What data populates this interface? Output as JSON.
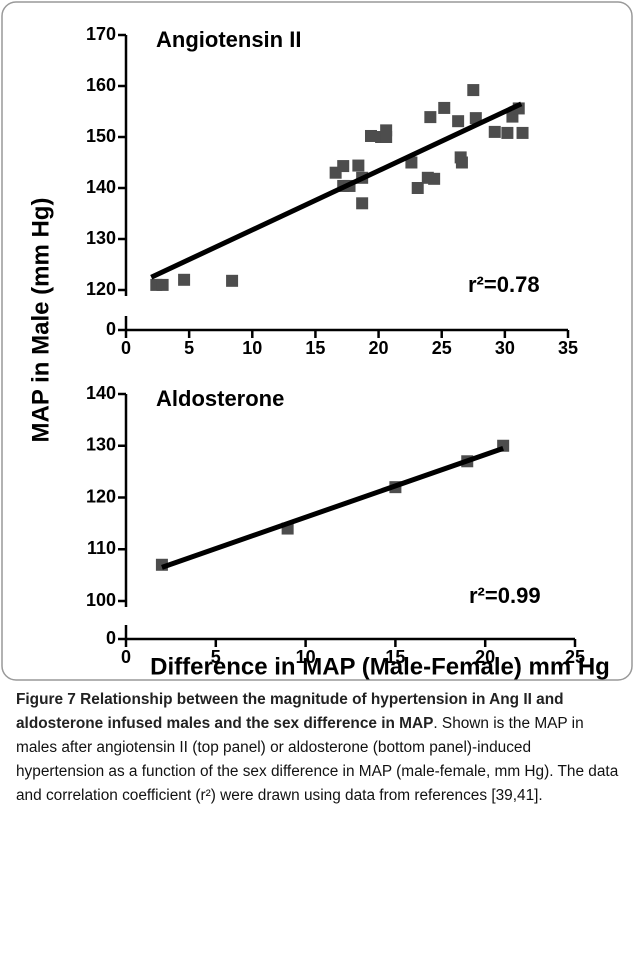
{
  "chart_data": [
    {
      "type": "scatter",
      "title": "Angiotensin II",
      "annotation": "r²=0.78",
      "x": [
        2.4,
        2.9,
        4.6,
        8.4,
        16.6,
        17.2,
        17.2,
        17.7,
        18.4,
        18.7,
        18.7,
        19.4,
        20.2,
        20.6,
        20.6,
        22.6,
        23.1,
        23.9,
        24.4,
        24.1,
        25.2,
        26.3,
        26.5,
        26.6,
        27.5,
        27.7,
        29.2,
        30.2,
        30.6,
        31.1,
        31.4
      ],
      "values": [
        121,
        121,
        122,
        121.8,
        143,
        144.3,
        140.4,
        140.4,
        144.4,
        142,
        137,
        150.2,
        150,
        151.3,
        150,
        145,
        140,
        142,
        141.8,
        153.9,
        155.7,
        153.1,
        146,
        145,
        159.2,
        153.7,
        151,
        150.8,
        154,
        155.6,
        150.8
      ],
      "color": "#4d4d4d",
      "fit": {
        "x": [
          2,
          31.3
        ],
        "y": [
          122.5,
          156.5
        ]
      },
      "xlim": [
        0,
        35
      ],
      "xticks": [
        0,
        5,
        10,
        15,
        20,
        25,
        30,
        35
      ],
      "ylim": [
        0,
        170
      ],
      "ybreak": [
        0,
        120
      ],
      "yticks": [
        0,
        120,
        130,
        140,
        150,
        160,
        170
      ]
    },
    {
      "type": "scatter",
      "title": "Aldosterone",
      "annotation": "r²=0.99",
      "x": [
        2,
        9,
        15,
        19,
        21
      ],
      "values": [
        107,
        114,
        122,
        127,
        130
      ],
      "color": "#4d4d4d",
      "fit": {
        "x": [
          2,
          21
        ],
        "y": [
          106.5,
          129.5
        ]
      },
      "xlim": [
        0,
        25
      ],
      "xticks": [
        0,
        5,
        10,
        15,
        20,
        25
      ],
      "ylim": [
        0,
        140
      ],
      "ybreak": [
        0,
        100
      ],
      "yticks": [
        0,
        100,
        110,
        120,
        130,
        140
      ]
    }
  ],
  "axes": {
    "ylabel": "MAP in Male (mm Hg)",
    "xlabel": "Difference in MAP (Male-Female) mm Hg"
  },
  "caption": {
    "bold": "Figure 7 Relationship between the magnitude of hypertension in Ang II and aldosterone infused males and the sex difference in MAP",
    "text": ". Shown is the MAP in males after angiotensin II (top panel) or aldosterone (bottom panel)-induced hypertension as a function of the sex difference in MAP (male-female, mm Hg). The data and correlation coefficient (r²) were drawn using data from references [39,41]."
  }
}
